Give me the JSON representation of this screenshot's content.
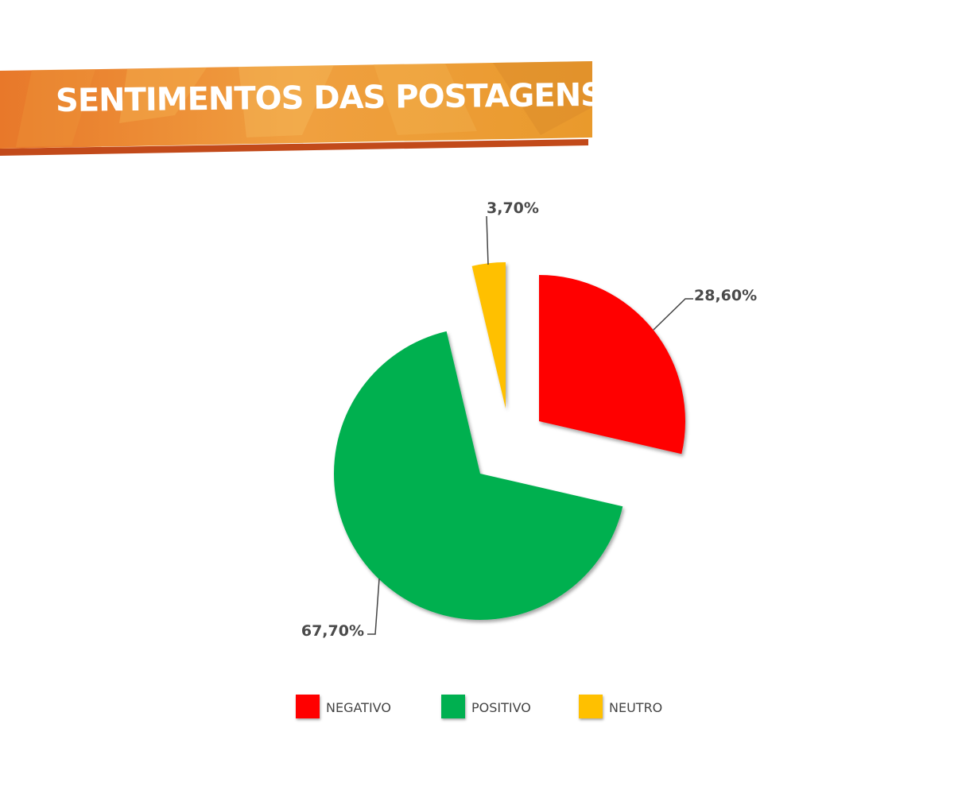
{
  "title": "SENTIMENTOS DAS POSTAGENS",
  "colors": {
    "banner_main": "#e8862a",
    "banner_light": "#f3a94a",
    "banner_shadow": "#c24a1a"
  },
  "chart_data": {
    "type": "pie",
    "title": "SENTIMENTOS DAS POSTAGENS",
    "slices": [
      {
        "name": "NEGATIVO",
        "value": 28.6,
        "label": "28,60%",
        "color": "#ff0000"
      },
      {
        "name": "POSITIVO",
        "value": 67.7,
        "label": "67,70%",
        "color": "#00b050"
      },
      {
        "name": "NEUTRO",
        "value": 3.7,
        "label": "3,70%",
        "color": "#ffc000"
      }
    ],
    "exploded": true,
    "legend_position": "bottom"
  },
  "legend": [
    {
      "label": "NEGATIVO",
      "color": "#ff0000"
    },
    {
      "label": "POSITIVO",
      "color": "#00b050"
    },
    {
      "label": "NEUTRO",
      "color": "#ffc000"
    }
  ]
}
